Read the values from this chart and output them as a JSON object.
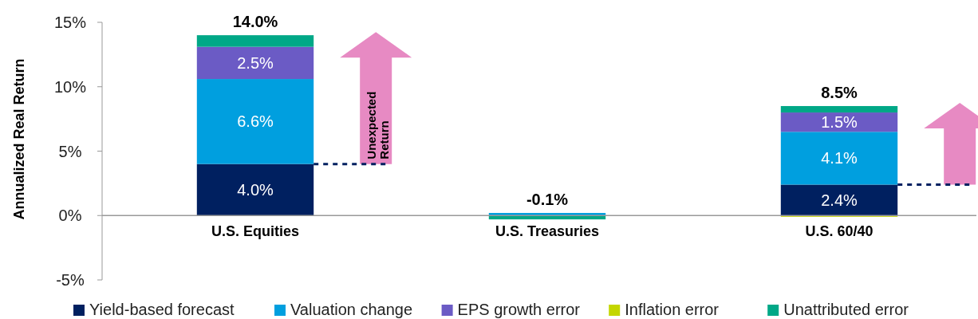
{
  "chart_data": {
    "type": "bar",
    "stacked": true,
    "ylabel": "Annualized Real Return",
    "categories": [
      "U.S. Equities",
      "U.S. Treasuries",
      "U.S. 60/40"
    ],
    "series": [
      {
        "name": "Yield-based forecast",
        "color": "#002060",
        "values": [
          4.0,
          0.0,
          2.4
        ],
        "value_labels": [
          "4.0%",
          null,
          "2.4%"
        ]
      },
      {
        "name": "Valuation change",
        "color": "#009fdf",
        "values": [
          6.6,
          0.2,
          4.1
        ],
        "value_labels": [
          "6.6%",
          null,
          "4.1%"
        ]
      },
      {
        "name": "EPS growth error",
        "color": "#6b5bc5",
        "values": [
          2.5,
          0.0,
          1.5
        ],
        "value_labels": [
          "2.5%",
          null,
          "1.5%"
        ]
      },
      {
        "name": "Inflation error",
        "color": "#c4d600",
        "values": [
          0.0,
          0.0,
          -0.1
        ]
      },
      {
        "name": "Unattributed error",
        "color": "#00a887",
        "values": [
          0.9,
          -0.3,
          0.5
        ]
      }
    ],
    "totals": [
      "14.0%",
      "-0.1%",
      "8.5%"
    ],
    "ylim": [
      -5,
      15
    ],
    "yticks": [
      {
        "value": -5,
        "label": "-5%"
      },
      {
        "value": 0,
        "label": "0%"
      },
      {
        "value": 5,
        "label": "5%"
      },
      {
        "value": 10,
        "label": "10%"
      },
      {
        "value": 15,
        "label": "15%"
      }
    ],
    "grid": false,
    "legend": "bottom",
    "ref_lines": [
      {
        "axis": "y",
        "value": 4.0,
        "color": "#002060",
        "line_style": "dotted"
      },
      {
        "axis": "y",
        "value": 2.4,
        "color": "#002060",
        "line_style": "dotted"
      }
    ],
    "annotations": [
      "Unexpected Return"
    ]
  }
}
